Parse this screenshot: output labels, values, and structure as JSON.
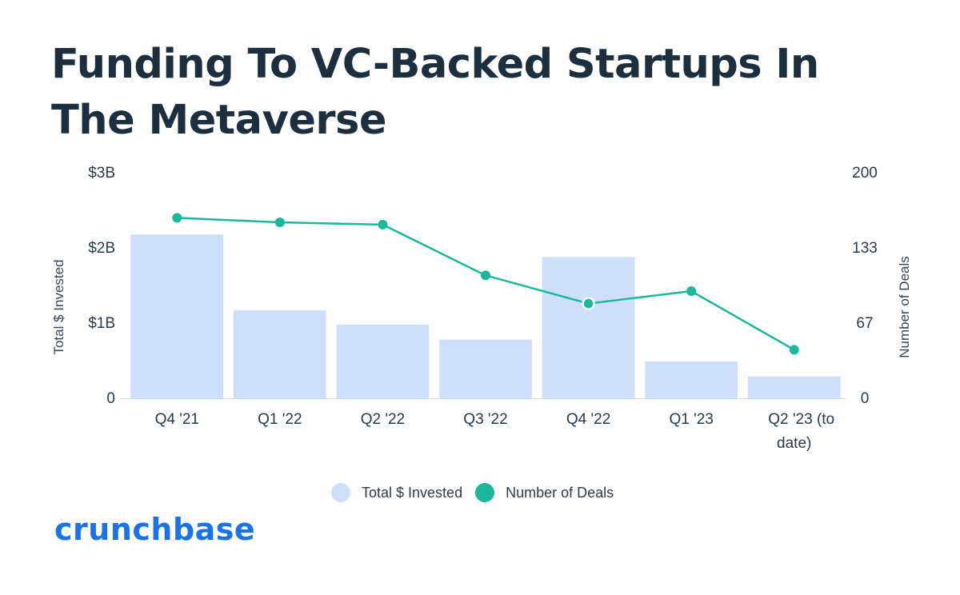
{
  "title": "Funding To VC-Backed Startups In The Metaverse",
  "colors": {
    "bar": "#cddffb",
    "line": "#1cb89a",
    "brand": "#1a73e8",
    "axis": "#cfd9e3"
  },
  "brand": {
    "name": "crunchbase"
  },
  "chart_data": {
    "type": "bar",
    "categories": [
      "Q4 '21",
      "Q1 '22",
      "Q2 '22",
      "Q3 '22",
      "Q4 '22",
      "Q1 '23",
      "Q2 '23 (to date)"
    ],
    "series": [
      {
        "name": "Total $ Invested",
        "type": "bar",
        "axis": "left",
        "values": [
          2.18,
          1.17,
          0.98,
          0.78,
          1.88,
          0.49,
          0.29
        ]
      },
      {
        "name": "Number of Deals",
        "type": "line",
        "axis": "right",
        "values": [
          160,
          156,
          154,
          109,
          84,
          95,
          43
        ]
      }
    ],
    "y_left": {
      "label": "Total $ Invested",
      "ticks": [
        "0",
        "$1B",
        "$2B",
        "$3B"
      ],
      "range": [
        0,
        3
      ]
    },
    "y_right": {
      "label": "Number of Deals",
      "ticks": [
        "0",
        "67",
        "133",
        "200"
      ],
      "range": [
        0,
        200
      ]
    },
    "legend": {
      "position": "bottom-center",
      "items": [
        "Total $ Invested",
        "Number of Deals"
      ]
    },
    "grid": false
  }
}
